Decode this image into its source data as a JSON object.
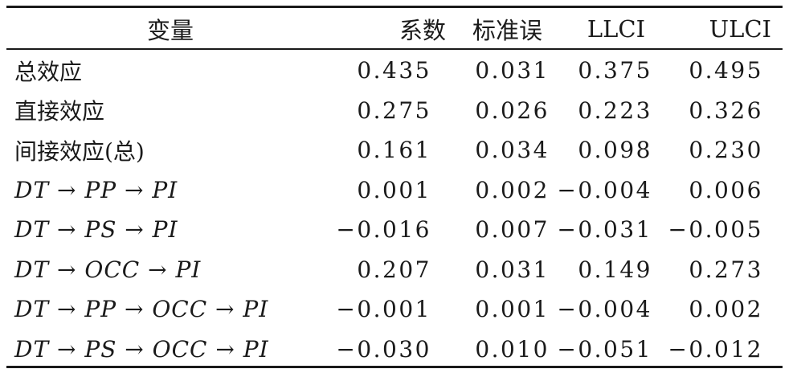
{
  "table": {
    "headers": [
      "变量",
      "系数",
      "标准误",
      "LLCI",
      "ULCI"
    ],
    "rows": [
      {
        "label": "总效应",
        "italic": false,
        "coef": "0.435",
        "se": "0.031",
        "llci": "0.375",
        "ulci": "0.495"
      },
      {
        "label": "直接效应",
        "italic": false,
        "coef": "0.275",
        "se": "0.026",
        "llci": "0.223",
        "ulci": "0.326"
      },
      {
        "label": "间接效应(总)",
        "italic": false,
        "coef": "0.161",
        "se": "0.034",
        "llci": "0.098",
        "ulci": "0.230"
      },
      {
        "label": "DT → PP → PI",
        "italic": true,
        "coef": "0.001",
        "se": "0.002",
        "llci": "−0.004",
        "ulci": "0.006"
      },
      {
        "label": "DT → PS → PI",
        "italic": true,
        "coef": "−0.016",
        "se": "0.007",
        "llci": "−0.031",
        "ulci": "−0.005"
      },
      {
        "label": "DT → OCC → PI",
        "italic": true,
        "coef": "0.207",
        "se": "0.031",
        "llci": "0.149",
        "ulci": "0.273"
      },
      {
        "label": "DT → PP → OCC → PI",
        "italic": true,
        "coef": "−0.001",
        "se": "0.001",
        "llci": "−0.004",
        "ulci": "0.002"
      },
      {
        "label": "DT → PS → OCC → PI",
        "italic": true,
        "coef": "−0.030",
        "se": "0.010",
        "llci": "−0.051",
        "ulci": "−0.012"
      }
    ]
  }
}
